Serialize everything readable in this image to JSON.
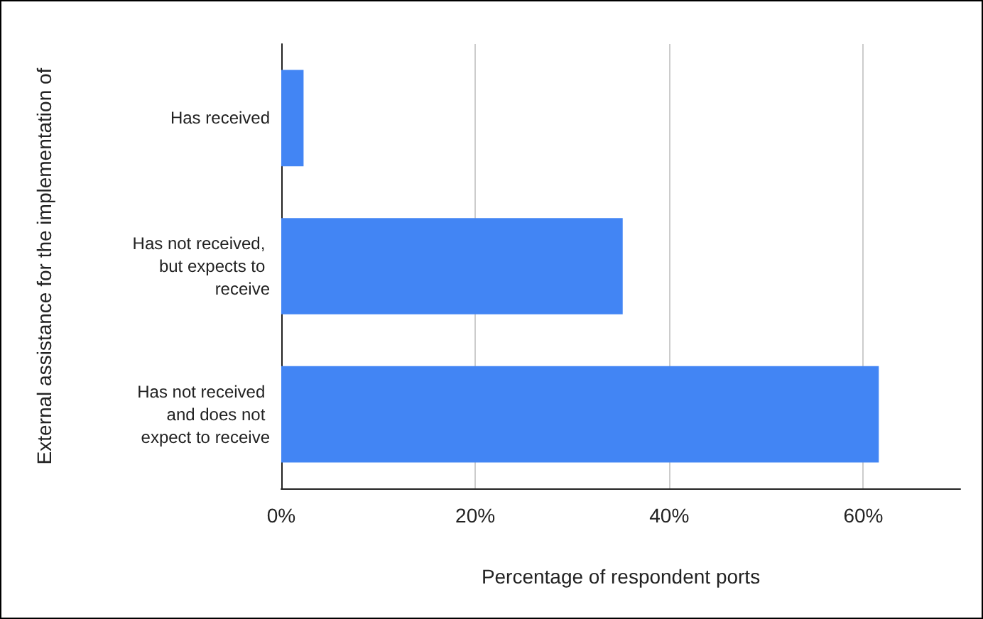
{
  "chart_data": {
    "type": "bar",
    "orientation": "horizontal",
    "xlabel": "Percentage of respondent ports",
    "ylabel": "External assistance for the implementation of",
    "categories": [
      "Has received",
      "Has not received, but expects to receive",
      "Has not received and does not expect to receive"
    ],
    "values": [
      2.3,
      35.2,
      61.6
    ],
    "color": "#4285f4",
    "xlim": [
      0,
      70
    ],
    "xticks": [
      {
        "value": 0,
        "label": "0%"
      },
      {
        "value": 20,
        "label": "20%"
      },
      {
        "value": 40,
        "label": "40%"
      },
      {
        "value": 60,
        "label": "60%"
      }
    ],
    "grid": "x"
  }
}
